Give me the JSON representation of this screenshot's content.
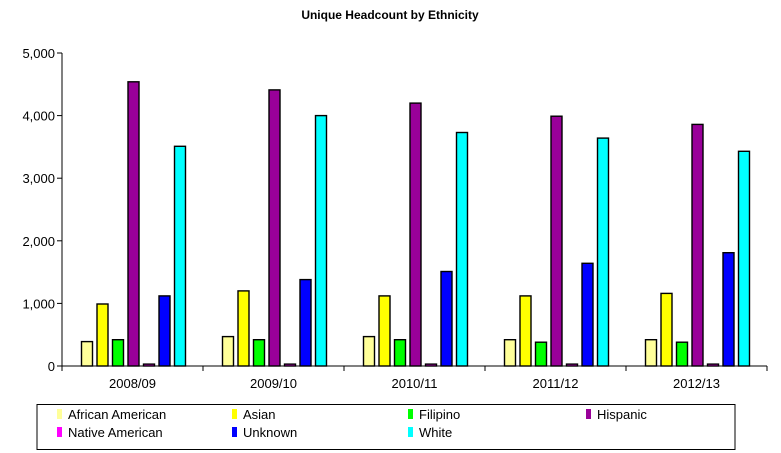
{
  "chart_data": {
    "type": "bar",
    "title": "Unique Headcount by Ethnicity",
    "xlabel": "",
    "ylabel": "",
    "categories": [
      "2008/09",
      "2009/10",
      "2010/11",
      "2011/12",
      "2012/13"
    ],
    "ylim": [
      0,
      5000
    ],
    "yticks": [
      0,
      1000,
      2000,
      3000,
      4000,
      5000
    ],
    "ytick_labels": [
      "0",
      "1,000",
      "2,000",
      "3,000",
      "4,000",
      "5,000"
    ],
    "grid": false,
    "legend_position": "bottom",
    "series": [
      {
        "name": "African American",
        "color": "#ffff99",
        "values": [
          390,
          470,
          470,
          420,
          420
        ]
      },
      {
        "name": "Asian",
        "color": "#ffff00",
        "values": [
          990,
          1200,
          1120,
          1120,
          1160
        ]
      },
      {
        "name": "Filipino",
        "color": "#00ff00",
        "values": [
          420,
          420,
          420,
          380,
          380
        ]
      },
      {
        "name": "Hispanic",
        "color": "#990099",
        "values": [
          4540,
          4410,
          4200,
          3990,
          3860
        ]
      },
      {
        "name": "Native American",
        "color": "#ff00ff",
        "values": [
          30,
          30,
          30,
          30,
          30
        ]
      },
      {
        "name": "Unknown",
        "color": "#0000ff",
        "values": [
          1120,
          1380,
          1510,
          1640,
          1810
        ]
      },
      {
        "name": "White",
        "color": "#00ffff",
        "values": [
          3510,
          4000,
          3730,
          3640,
          3430
        ]
      }
    ]
  }
}
